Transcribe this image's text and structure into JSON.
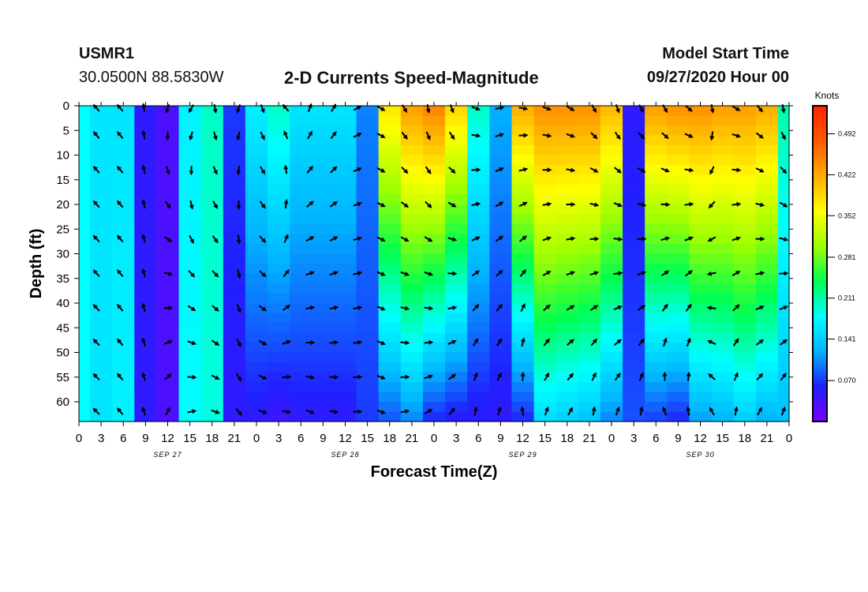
{
  "header": {
    "station": "USMR1",
    "location": "30.0500N 88.5830W",
    "title": "2-D Currents Speed-Magnitude",
    "model_start_label": "Model Start Time",
    "model_start_value": "09/27/2020 Hour 00"
  },
  "chart_data": {
    "type": "heatmap",
    "title": "2-D Currents Speed-Magnitude",
    "xlabel": "Forecast Time(Z)",
    "ylabel": "Depth (ft)",
    "x_tick_labels": [
      "0",
      "3",
      "6",
      "9",
      "12",
      "15",
      "18",
      "21",
      "0",
      "3",
      "6",
      "9",
      "12",
      "15",
      "18",
      "21",
      "0",
      "3",
      "6",
      "9",
      "12",
      "15",
      "18",
      "21",
      "0",
      "3",
      "6",
      "9",
      "12",
      "15",
      "18",
      "21",
      "0"
    ],
    "x_date_labels": [
      "SEP 27",
      "SEP 28",
      "SEP 29",
      "SEP 30"
    ],
    "xlim_hours": [
      0,
      96
    ],
    "y_tick_labels": [
      "0",
      "5",
      "10",
      "15",
      "20",
      "25",
      "30",
      "35",
      "40",
      "45",
      "50",
      "55",
      "60"
    ],
    "ylim_ft": [
      0,
      64
    ],
    "y_inverted": true,
    "colorbar": {
      "unit_label": "Knots",
      "tick_labels": [
        "0.492",
        "0.422",
        "0.352",
        "0.281",
        "0.211",
        "0.141",
        "0.070"
      ],
      "range": [
        0.0,
        0.54
      ],
      "colors": [
        "#7a00ff",
        "#2020ff",
        "#00b4ff",
        "#00ffff",
        "#00ff50",
        "#9cff00",
        "#ffff00",
        "#ffaa00",
        "#ff5a00",
        "#ff2000"
      ]
    },
    "speed_knots": {
      "depth_ft": [
        0,
        64
      ],
      "hours": [
        0,
        3,
        6,
        9,
        12,
        15,
        18,
        21,
        24,
        27,
        30,
        33,
        36,
        39,
        42,
        45,
        48,
        51,
        54,
        57,
        60,
        63,
        66,
        69,
        72,
        75,
        78,
        81,
        84,
        87,
        90,
        93,
        96
      ],
      "surface": [
        0.18,
        0.16,
        0.16,
        0.05,
        0.03,
        0.17,
        0.2,
        0.07,
        0.17,
        0.2,
        0.16,
        0.16,
        0.16,
        0.1,
        0.38,
        0.43,
        0.45,
        0.39,
        0.2,
        0.12,
        0.42,
        0.44,
        0.44,
        0.44,
        0.41,
        0.05,
        0.43,
        0.44,
        0.44,
        0.43,
        0.43,
        0.42,
        0.21
      ],
      "bottom": [
        0.18,
        0.16,
        0.17,
        0.05,
        0.03,
        0.18,
        0.19,
        0.05,
        0.05,
        0.04,
        0.05,
        0.05,
        0.05,
        0.07,
        0.08,
        0.1,
        0.06,
        0.05,
        0.05,
        0.05,
        0.06,
        0.15,
        0.14,
        0.13,
        0.1,
        0.08,
        0.07,
        0.06,
        0.11,
        0.12,
        0.14,
        0.12,
        0.13
      ]
    },
    "vectors": {
      "hours": [
        2.4,
        5.6,
        8.8,
        12,
        15.2,
        18.4,
        21.6,
        24.8,
        28,
        31.2,
        34.4,
        37.6,
        40.8,
        44,
        47.2,
        50.4,
        53.6,
        56.8,
        60,
        63.2,
        66.4,
        69.6,
        72.8,
        76,
        79.2,
        82.4,
        85.6,
        88.8,
        92,
        95.2
      ],
      "depth_ft": [
        0.5,
        6,
        13,
        20,
        27,
        34,
        41,
        48,
        55,
        62
      ],
      "direction_deg_surface": [
        320,
        320,
        350,
        200,
        210,
        170,
        200,
        160,
        320,
        20,
        30,
        60,
        120,
        150,
        170,
        160,
        110,
        80,
        100,
        110,
        120,
        150,
        160,
        150,
        150,
        130,
        170,
        120,
        140,
        170
      ],
      "direction_deg_bottom": [
        315,
        320,
        340,
        30,
        80,
        110,
        140,
        110,
        100,
        110,
        100,
        90,
        110,
        80,
        60,
        40,
        10,
        20,
        350,
        20,
        30,
        10,
        20,
        10,
        340,
        350,
        330,
        10,
        30,
        20
      ]
    }
  }
}
